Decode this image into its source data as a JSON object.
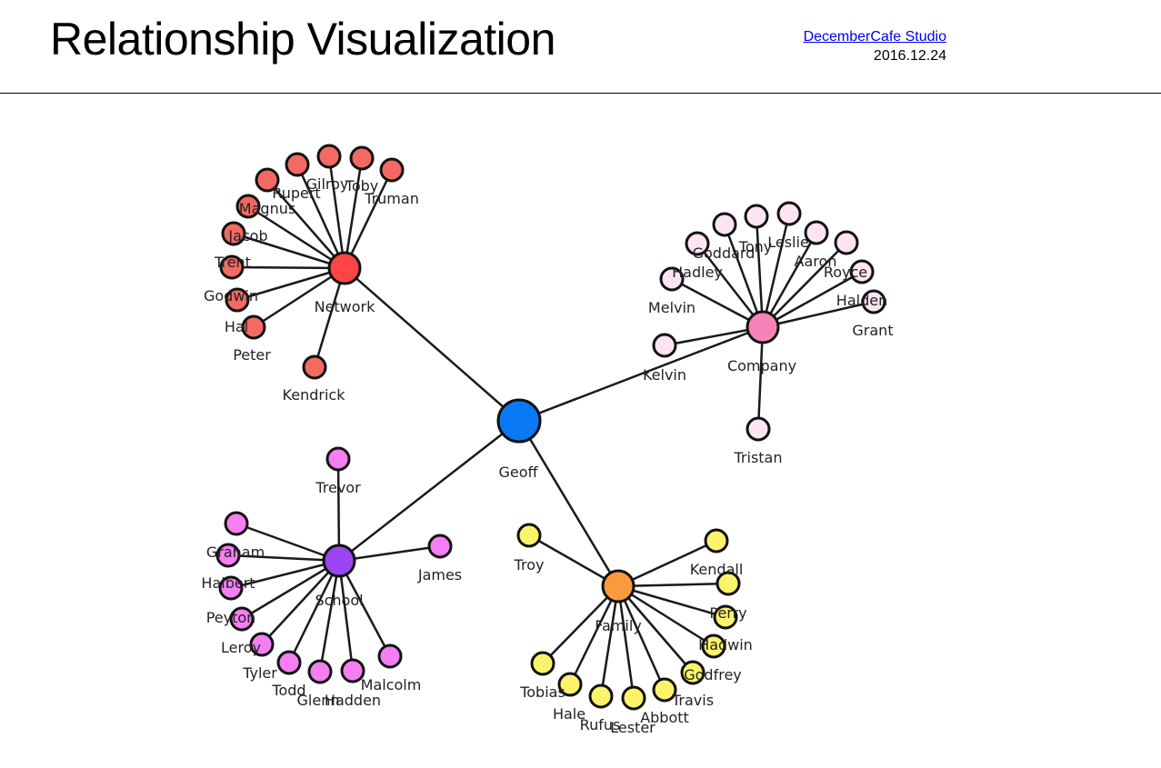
{
  "header": {
    "title": "Relationship Visualization",
    "studio_link": "DecemberCafe Studio",
    "date": "2016.12.24"
  },
  "graph": {
    "center": {
      "name": "Geoff",
      "color": "#0a79f5"
    },
    "groups": [
      {
        "name": "Network",
        "hub_color": "#ff4545",
        "leaf_color": "#f26a62",
        "members": [
          "Gilroy",
          "Toby",
          "Truman",
          "Rupert",
          "Magnus",
          "Jacob",
          "Trent",
          "Godwin",
          "Hal",
          "Peter",
          "Kendrick"
        ]
      },
      {
        "name": "Company",
        "hub_color": "#f583b8",
        "leaf_color": "#fce4f3",
        "members": [
          "Goddard",
          "Tony",
          "Leslie",
          "Aaron",
          "Royce",
          "Hadley",
          "Melvin",
          "Halden",
          "Grant",
          "Kelvin",
          "Tristan"
        ]
      },
      {
        "name": "School",
        "hub_color": "#9b45f2",
        "leaf_color": "#f57ef3",
        "members": [
          "Trevor",
          "Graham",
          "Halbert",
          "Peyton",
          "Leroy",
          "Tyler",
          "Todd",
          "Glenn",
          "Hadden",
          "Malcolm",
          "James"
        ]
      },
      {
        "name": "Family",
        "hub_color": "#fb9a3b",
        "leaf_color": "#fbf36a",
        "members": [
          "Troy",
          "Kendall",
          "Perry",
          "Hadwin",
          "Godfrey",
          "Travis",
          "Abbott",
          "Lester",
          "Rufus",
          "Hale",
          "Tobias"
        ]
      }
    ]
  }
}
